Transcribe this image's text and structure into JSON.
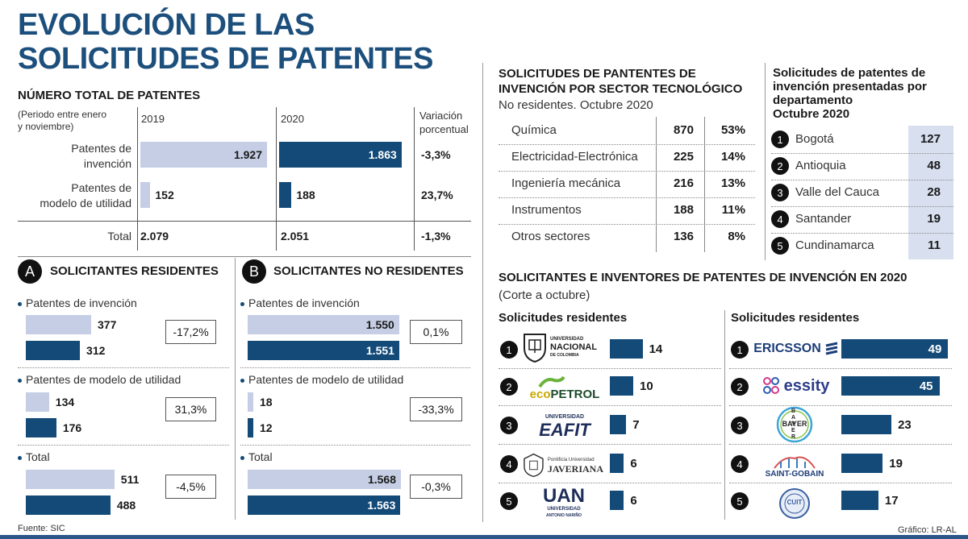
{
  "title": {
    "line1": "EVOLUCIÓN DE LAS",
    "line2": "SOLICITUDES DE PATENTES"
  },
  "total": {
    "heading": "NÚMERO TOTAL DE PATENTES",
    "period_note": "(Periodo entre enero\ny noviembre)",
    "col_2019": "2019",
    "col_2020": "2020",
    "col_var": "Variación\nporcentual",
    "total_label": "Total"
  },
  "resA": {
    "badge": "A",
    "heading": "SOLICITANTES RESIDENTES",
    "group1": "Patentes de invención",
    "group2": "Patentes de modelo de utilidad",
    "group3": "Total"
  },
  "resB": {
    "badge": "B",
    "heading": "SOLICITANTES NO RESIDENTES",
    "group1": "Patentes de invención",
    "group2": "Patentes de modelo de utilidad",
    "group3": "Total"
  },
  "sector": {
    "heading": "SOLICITUDES DE PANTENTES DE\nINVENCIÓN POR SECTOR TECNOLÓGICO",
    "sub": "No residentes. Octubre 2020"
  },
  "depto": {
    "heading": "Solicitudes de patentes de\ninvención presentadas por\ndepartamento\nOctubre 2020"
  },
  "inventores": {
    "heading": "SOLICITANTES E INVENTORES DE PATENTES DE INVENCIÓN EN 2020",
    "sub": "(Corte a octubre)",
    "left_heading": "Solicitudes residentes",
    "right_heading": "Solicitudes residentes"
  },
  "logos": {
    "unal": {
      "line1": "UNIVERSIDAD",
      "line2": "NACIONAL",
      "line3": "DE COLOMBIA"
    },
    "eco": {
      "text1": "eco",
      "text2": "PETROL"
    },
    "eafit": {
      "line1": "UNIVERSIDAD",
      "line2": "EAFIT"
    },
    "jav": {
      "line1": "Pontificia Universidad",
      "line2": "JAVERIANA"
    },
    "uan": {
      "line1": "UAN",
      "line2": "UNIVERSIDAD",
      "line3": "ANTONIO NARIÑO"
    },
    "ericsson": {
      "text": "ERICSSON"
    },
    "essity": {
      "text": "essity"
    },
    "bayer": {
      "h": "BAYER",
      "v": "BAYER"
    },
    "saint": {
      "text": "SAINT-GOBAIN"
    },
    "cuit": {
      "text": "CUIT"
    }
  },
  "colors": {
    "light": "#c5cee4",
    "dark": "#134a78",
    "title": "#1d4f7c",
    "highlight": "#d8e0f0"
  },
  "footer": {
    "source": "Fuente: SIC",
    "credit": "Gráfico: LR-AL"
  },
  "chart_data": [
    {
      "type": "bar",
      "title": "NÚMERO TOTAL DE PATENTES",
      "categories": [
        "Patentes de\ninvención",
        "Patentes de\nmodelo de utilidad",
        "Total"
      ],
      "series": [
        {
          "name": "2019",
          "values": [
            1927,
            152,
            2079
          ],
          "labels": [
            "1.927",
            "152",
            "2.079"
          ]
        },
        {
          "name": "2020",
          "values": [
            1863,
            188,
            2051
          ],
          "labels": [
            "1.863",
            "188",
            "2.051"
          ]
        }
      ],
      "variation": [
        "-3,3%",
        "23,7%",
        "-1,3%"
      ]
    },
    {
      "type": "bar",
      "title": "SOLICITANTES RESIDENTES",
      "groups": [
        {
          "values": [
            377,
            312
          ],
          "labels": [
            "377",
            "312"
          ],
          "variation": "-17,2%"
        },
        {
          "values": [
            134,
            176
          ],
          "labels": [
            "134",
            "176"
          ],
          "variation": "31,3%"
        },
        {
          "values": [
            511,
            488
          ],
          "labels": [
            "511",
            "488"
          ],
          "variation": "-4,5%"
        }
      ]
    },
    {
      "type": "bar",
      "title": "SOLICITANTES NO RESIDENTES",
      "groups": [
        {
          "values": [
            1550,
            1551
          ],
          "labels": [
            "1.550",
            "1.551"
          ],
          "variation": "0,1%"
        },
        {
          "values": [
            18,
            12
          ],
          "labels": [
            "18",
            "12"
          ],
          "variation": "-33,3%"
        },
        {
          "values": [
            1568,
            1563
          ],
          "labels": [
            "1.568",
            "1.563"
          ],
          "variation": "-0,3%"
        }
      ]
    },
    {
      "type": "table",
      "title": "SOLICITUDES DE PANTENTES DE INVENCIÓN POR SECTOR TECNOLÓGICO",
      "rows": [
        {
          "sector": "Química",
          "value": "870",
          "pct": "53%"
        },
        {
          "sector": "Electricidad-Electrónica",
          "value": "225",
          "pct": "14%"
        },
        {
          "sector": "Ingeniería mecánica",
          "value": "216",
          "pct": "13%"
        },
        {
          "sector": "Instrumentos",
          "value": "188",
          "pct": "11%"
        },
        {
          "sector": "Otros sectores",
          "value": "136",
          "pct": "8%"
        }
      ]
    },
    {
      "type": "table",
      "title": "Solicitudes de patentes de invención presentadas por departamento",
      "rows": [
        {
          "rank": "1",
          "name": "Bogotá",
          "value": "127"
        },
        {
          "rank": "2",
          "name": "Antioquia",
          "value": "48"
        },
        {
          "rank": "3",
          "name": "Valle del Cauca",
          "value": "28"
        },
        {
          "rank": "4",
          "name": "Santander",
          "value": "19"
        },
        {
          "rank": "5",
          "name": "Cundinamarca",
          "value": "11"
        }
      ]
    },
    {
      "type": "bar",
      "title": "Solicitudes residentes",
      "ranks": [
        "1",
        "2",
        "3",
        "4",
        "5"
      ],
      "values": [
        14,
        10,
        7,
        6,
        6
      ]
    },
    {
      "type": "bar",
      "title": "Solicitudes residentes",
      "ranks": [
        "1",
        "2",
        "3",
        "4",
        "5"
      ],
      "values": [
        49,
        45,
        23,
        19,
        17
      ]
    }
  ]
}
